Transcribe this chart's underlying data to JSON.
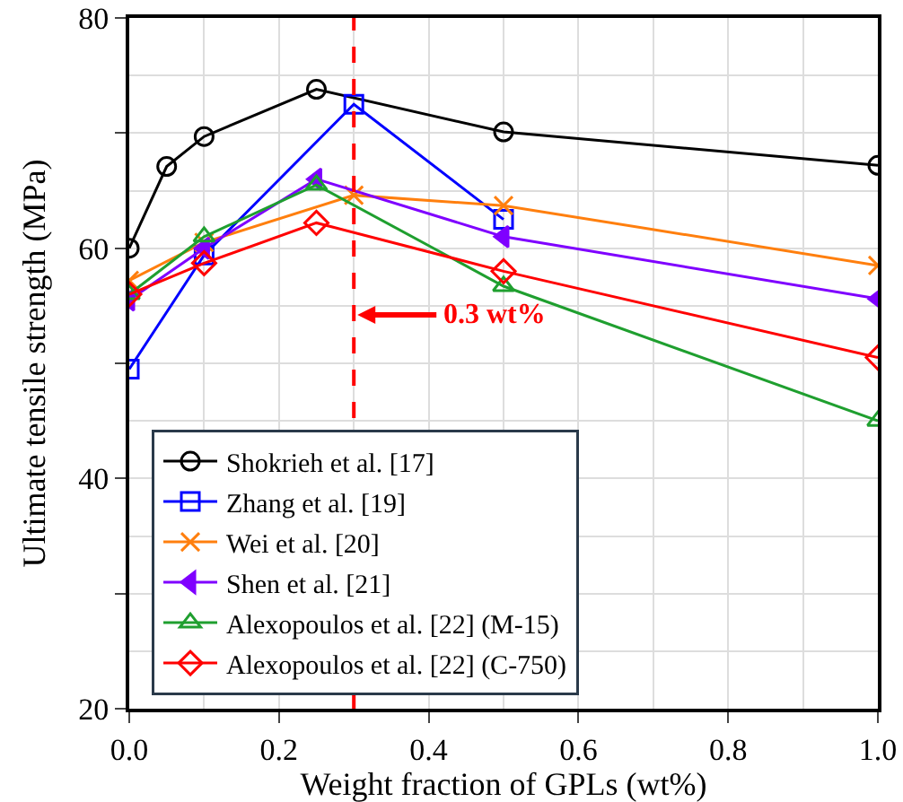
{
  "chart_data": {
    "type": "line",
    "xlabel": "Weight fraction of GPLs (wt%)",
    "ylabel": "Ultimate tensile strength (MPa)",
    "xlim": [
      0,
      1
    ],
    "xticks": [
      {
        "value": 0,
        "label": "0.0"
      },
      0.2,
      0.4,
      0.6,
      0.8,
      {
        "value": 1,
        "label": "1.0"
      }
    ],
    "ylim": [
      20,
      80
    ],
    "yticks": [
      20,
      {
        "value": 30,
        "label": null
      },
      40,
      {
        "value": 50,
        "label": null
      },
      60,
      {
        "value": 70,
        "label": null
      },
      80
    ],
    "grid": true,
    "legend": "bottom left",
    "line_style": "solid",
    "series": [
      {
        "name": "Shokrieh et al. [17]",
        "color": "#000000",
        "marker": "circle",
        "x": [
          0,
          0.05,
          0.1,
          0.25,
          0.5,
          1.0
        ],
        "values": [
          60,
          67.1,
          69.7,
          73.8,
          70.1,
          67.2
        ]
      },
      {
        "name": "Zhang et al. [19]",
        "color": "#0000ff",
        "marker": "square",
        "x": [
          0,
          0.1,
          0.3,
          0.5
        ],
        "values": [
          49.5,
          59.4,
          72.5,
          62.5
        ]
      },
      {
        "name": "Wei et al. [20]",
        "color": "#ff7f0e",
        "marker": "cross",
        "x": [
          0,
          0.1,
          0.3,
          0.5,
          1.0
        ],
        "values": [
          57.2,
          60.5,
          64.6,
          63.7,
          58.5
        ]
      },
      {
        "name": "Shen et al. [21]",
        "color": "#7f00ff",
        "marker": "triangle-left",
        "x": [
          0,
          0.1,
          0.25,
          0.5,
          1.0
        ],
        "values": [
          55.5,
          60,
          66,
          61,
          55.6
        ]
      },
      {
        "name": "Alexopoulos et al. [22] (M-15)",
        "color": "#1f9f2f",
        "marker": "triangle",
        "x": [
          0,
          0.1,
          0.25,
          0.5,
          1.0
        ],
        "values": [
          56,
          61,
          65.5,
          56.7,
          45
        ]
      },
      {
        "name": "Alexopoulos et al. [22] (C-750)",
        "color": "#ff0000",
        "marker": "diamond",
        "x": [
          0,
          0.1,
          0.25,
          0.5,
          1.0
        ],
        "values": [
          56,
          58.7,
          62.2,
          58,
          50.5
        ]
      }
    ],
    "ref_lines": [
      {
        "axis": "x",
        "value": 0.3,
        "color": "#ff0000",
        "line_style": "dashed",
        "label": "0.3 wt%"
      }
    ]
  }
}
